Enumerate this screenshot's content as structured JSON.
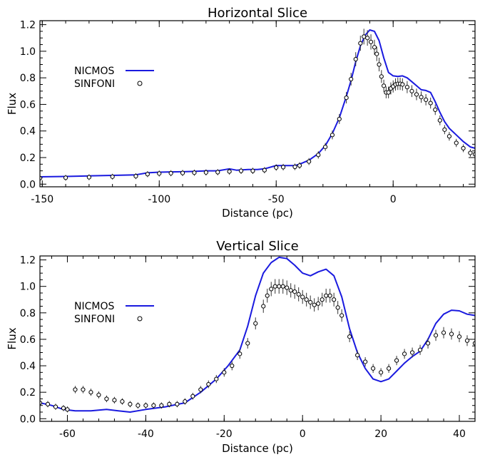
{
  "chart_data": [
    {
      "type": "line",
      "title": "Horizontal Slice",
      "xlabel": "Distance (pc)",
      "ylabel": "Flux",
      "xlim": [
        -151,
        35
      ],
      "ylim": [
        -0.02,
        1.23
      ],
      "xticks": [
        -150,
        -100,
        -50,
        0
      ],
      "yticks": [
        0.0,
        0.2,
        0.4,
        0.6,
        0.8,
        1.0,
        1.2
      ],
      "grid": false,
      "legend": "upper-left",
      "series": [
        {
          "name": "NICMOS",
          "style": "line",
          "color": "#1a1adf",
          "points": [
            [
              -151,
              0.055
            ],
            [
              -140,
              0.058
            ],
            [
              -130,
              0.062
            ],
            [
              -120,
              0.066
            ],
            [
              -110,
              0.07
            ],
            [
              -105,
              0.085
            ],
            [
              -100,
              0.09
            ],
            [
              -95,
              0.092
            ],
            [
              -90,
              0.093
            ],
            [
              -85,
              0.096
            ],
            [
              -80,
              0.1
            ],
            [
              -75,
              0.1
            ],
            [
              -70,
              0.115
            ],
            [
              -67,
              0.105
            ],
            [
              -62,
              0.11
            ],
            [
              -58,
              0.11
            ],
            [
              -55,
              0.115
            ],
            [
              -50,
              0.14
            ],
            [
              -47,
              0.14
            ],
            [
              -42,
              0.14
            ],
            [
              -40,
              0.15
            ],
            [
              -36,
              0.18
            ],
            [
              -32,
              0.23
            ],
            [
              -29,
              0.29
            ],
            [
              -26,
              0.38
            ],
            [
              -23,
              0.5
            ],
            [
              -20,
              0.66
            ],
            [
              -18,
              0.78
            ],
            [
              -16,
              0.92
            ],
            [
              -14,
              1.04
            ],
            [
              -12,
              1.12
            ],
            [
              -10,
              1.16
            ],
            [
              -8,
              1.15
            ],
            [
              -6,
              1.08
            ],
            [
              -4,
              0.95
            ],
            [
              -2,
              0.84
            ],
            [
              0,
              0.815
            ],
            [
              2,
              0.81
            ],
            [
              4,
              0.815
            ],
            [
              6,
              0.8
            ],
            [
              8,
              0.77
            ],
            [
              10,
              0.74
            ],
            [
              12,
              0.71
            ],
            [
              14,
              0.705
            ],
            [
              16,
              0.69
            ],
            [
              18,
              0.62
            ],
            [
              20,
              0.54
            ],
            [
              22,
              0.47
            ],
            [
              24,
              0.42
            ],
            [
              27,
              0.37
            ],
            [
              30,
              0.32
            ],
            [
              33,
              0.28
            ],
            [
              35,
              0.27
            ]
          ]
        },
        {
          "name": "SINFONI",
          "style": "points",
          "marker": "open-circle",
          "errorbars": true,
          "points": [
            [
              -151,
              0.045
            ],
            [
              -140,
              0.048
            ],
            [
              -130,
              0.052
            ],
            [
              -120,
              0.056
            ],
            [
              -110,
              0.06
            ],
            [
              -105,
              0.075
            ],
            [
              -100,
              0.08
            ],
            [
              -95,
              0.082
            ],
            [
              -90,
              0.084
            ],
            [
              -85,
              0.086
            ],
            [
              -80,
              0.088
            ],
            [
              -75,
              0.09
            ],
            [
              -70,
              0.095
            ],
            [
              -65,
              0.1
            ],
            [
              -60,
              0.1
            ],
            [
              -55,
              0.105
            ],
            [
              -50,
              0.125
            ],
            [
              -47,
              0.128
            ],
            [
              -42,
              0.13
            ],
            [
              -40,
              0.14
            ],
            [
              -36,
              0.17
            ],
            [
              -32,
              0.22
            ],
            [
              -29,
              0.28
            ],
            [
              -26,
              0.37
            ],
            [
              -23,
              0.49
            ],
            [
              -20,
              0.65
            ],
            [
              -18,
              0.79
            ],
            [
              -16,
              0.94
            ],
            [
              -14,
              1.06
            ],
            [
              -12.5,
              1.11
            ],
            [
              -11,
              1.1
            ],
            [
              -9.5,
              1.07
            ],
            [
              -8,
              1.03
            ],
            [
              -7,
              0.98
            ],
            [
              -6,
              0.9
            ],
            [
              -5,
              0.81
            ],
            [
              -4,
              0.74
            ],
            [
              -3,
              0.69
            ],
            [
              -2,
              0.69
            ],
            [
              -1,
              0.72
            ],
            [
              0,
              0.735
            ],
            [
              1,
              0.75
            ],
            [
              2,
              0.755
            ],
            [
              3,
              0.755
            ],
            [
              4,
              0.75
            ],
            [
              6,
              0.73
            ],
            [
              8,
              0.7
            ],
            [
              10,
              0.675
            ],
            [
              12,
              0.655
            ],
            [
              14,
              0.635
            ],
            [
              16,
              0.61
            ],
            [
              18,
              0.56
            ],
            [
              20,
              0.48
            ],
            [
              22,
              0.41
            ],
            [
              24,
              0.36
            ],
            [
              27,
              0.31
            ],
            [
              30,
              0.27
            ],
            [
              33,
              0.235
            ],
            [
              35,
              0.225
            ]
          ]
        }
      ]
    },
    {
      "type": "line",
      "title": "Vertical Slice",
      "xlabel": "Distance (pc)",
      "ylabel": "Flux",
      "xlim": [
        -67,
        44
      ],
      "ylim": [
        -0.02,
        1.23
      ],
      "xticks": [
        -60,
        -40,
        -20,
        0,
        20,
        40
      ],
      "yticks": [
        0.0,
        0.2,
        0.4,
        0.6,
        0.8,
        1.0,
        1.2
      ],
      "grid": false,
      "legend": "upper-left",
      "series": [
        {
          "name": "NICMOS",
          "style": "line",
          "color": "#1a1adf",
          "points": [
            [
              -67,
              0.12
            ],
            [
              -64,
              0.1
            ],
            [
              -61,
              0.07
            ],
            [
              -58,
              0.06
            ],
            [
              -54,
              0.06
            ],
            [
              -50,
              0.07
            ],
            [
              -47,
              0.06
            ],
            [
              -44,
              0.05
            ],
            [
              -40,
              0.07
            ],
            [
              -35,
              0.09
            ],
            [
              -30,
              0.12
            ],
            [
              -26,
              0.2
            ],
            [
              -22,
              0.3
            ],
            [
              -19,
              0.4
            ],
            [
              -16,
              0.52
            ],
            [
              -14,
              0.7
            ],
            [
              -12,
              0.93
            ],
            [
              -10,
              1.1
            ],
            [
              -8,
              1.18
            ],
            [
              -6,
              1.22
            ],
            [
              -4,
              1.21
            ],
            [
              -2,
              1.16
            ],
            [
              0,
              1.1
            ],
            [
              2,
              1.08
            ],
            [
              4,
              1.11
            ],
            [
              6,
              1.13
            ],
            [
              8,
              1.08
            ],
            [
              10,
              0.92
            ],
            [
              12,
              0.68
            ],
            [
              14,
              0.5
            ],
            [
              16,
              0.38
            ],
            [
              18,
              0.3
            ],
            [
              20,
              0.28
            ],
            [
              22,
              0.3
            ],
            [
              24,
              0.36
            ],
            [
              26,
              0.42
            ],
            [
              28,
              0.47
            ],
            [
              30,
              0.51
            ],
            [
              32,
              0.6
            ],
            [
              34,
              0.72
            ],
            [
              36,
              0.79
            ],
            [
              38,
              0.82
            ],
            [
              40,
              0.815
            ],
            [
              42,
              0.79
            ],
            [
              44,
              0.78
            ]
          ]
        },
        {
          "name": "SINFONI",
          "style": "points",
          "marker": "open-circle",
          "errorbars": true,
          "points": [
            [
              -67,
              0.12
            ],
            [
              -65,
              0.11
            ],
            [
              -63,
              0.09
            ],
            [
              -61,
              0.08
            ],
            [
              -60,
              0.07
            ],
            [
              -58,
              0.22
            ],
            [
              -56,
              0.22
            ],
            [
              -54,
              0.2
            ],
            [
              -52,
              0.18
            ],
            [
              -50,
              0.15
            ],
            [
              -48,
              0.14
            ],
            [
              -46,
              0.13
            ],
            [
              -44,
              0.11
            ],
            [
              -42,
              0.1
            ],
            [
              -40,
              0.1
            ],
            [
              -38,
              0.1
            ],
            [
              -36,
              0.1
            ],
            [
              -34,
              0.11
            ],
            [
              -32,
              0.11
            ],
            [
              -30,
              0.13
            ],
            [
              -28,
              0.17
            ],
            [
              -26,
              0.22
            ],
            [
              -24,
              0.26
            ],
            [
              -22,
              0.3
            ],
            [
              -20,
              0.35
            ],
            [
              -18,
              0.4
            ],
            [
              -16,
              0.49
            ],
            [
              -14,
              0.57
            ],
            [
              -12,
              0.72
            ],
            [
              -10,
              0.85
            ],
            [
              -9,
              0.93
            ],
            [
              -8,
              0.98
            ],
            [
              -7,
              1.0
            ],
            [
              -6,
              1.0
            ],
            [
              -5,
              1.0
            ],
            [
              -4,
              0.99
            ],
            [
              -3,
              0.97
            ],
            [
              -2,
              0.96
            ],
            [
              -1,
              0.94
            ],
            [
              0,
              0.92
            ],
            [
              1,
              0.9
            ],
            [
              2,
              0.88
            ],
            [
              3,
              0.86
            ],
            [
              4,
              0.87
            ],
            [
              5,
              0.9
            ],
            [
              6,
              0.93
            ],
            [
              7,
              0.93
            ],
            [
              8,
              0.9
            ],
            [
              9,
              0.84
            ],
            [
              10,
              0.78
            ],
            [
              12,
              0.62
            ],
            [
              14,
              0.48
            ],
            [
              16,
              0.43
            ],
            [
              18,
              0.38
            ],
            [
              20,
              0.35
            ],
            [
              22,
              0.38
            ],
            [
              24,
              0.44
            ],
            [
              26,
              0.49
            ],
            [
              28,
              0.5
            ],
            [
              30,
              0.52
            ],
            [
              32,
              0.57
            ],
            [
              34,
              0.63
            ],
            [
              36,
              0.65
            ],
            [
              38,
              0.64
            ],
            [
              40,
              0.62
            ],
            [
              42,
              0.59
            ],
            [
              44,
              0.57
            ]
          ]
        }
      ]
    }
  ]
}
